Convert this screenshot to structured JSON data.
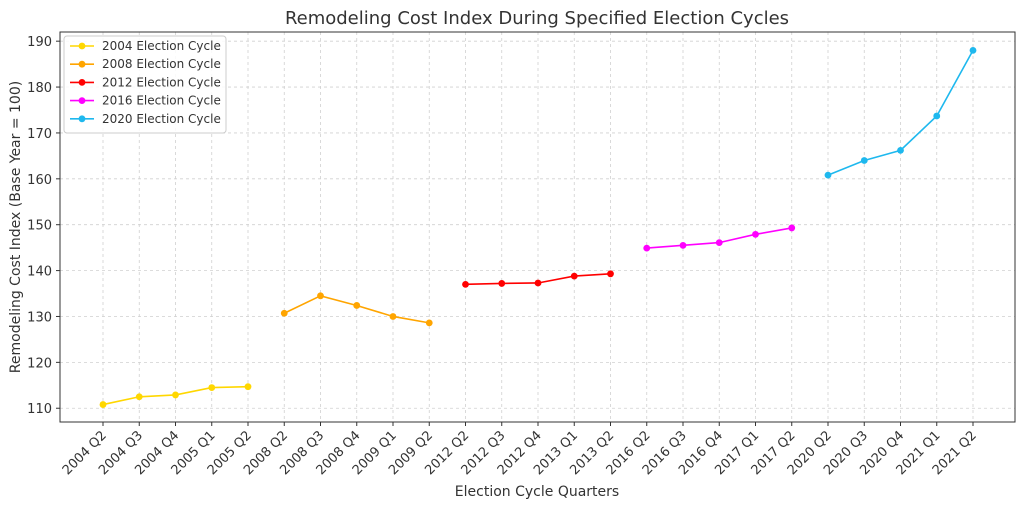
{
  "chart_data": {
    "type": "line",
    "title": "Remodeling Cost Index During Specified Election Cycles",
    "xlabel": "Election Cycle Quarters",
    "ylabel": "Remodeling Cost Index (Base Year = 100)",
    "ylim": [
      107,
      192
    ],
    "yticks": [
      110,
      120,
      130,
      140,
      150,
      160,
      170,
      180,
      190
    ],
    "grid": true,
    "legend_position": "top-left",
    "categories": [
      "2004 Q2",
      "2004 Q3",
      "2004 Q4",
      "2005 Q1",
      "2005 Q2",
      "2008 Q2",
      "2008 Q3",
      "2008 Q4",
      "2009 Q1",
      "2009 Q2",
      "2012 Q2",
      "2012 Q3",
      "2012 Q4",
      "2013 Q1",
      "2013 Q2",
      "2016 Q2",
      "2016 Q3",
      "2016 Q4",
      "2017 Q1",
      "2017 Q2",
      "2020 Q2",
      "2020 Q3",
      "2020 Q4",
      "2021 Q1",
      "2021 Q2"
    ],
    "series": [
      {
        "name": "2004 Election Cycle",
        "color": "#FFD700",
        "x": [
          "2004 Q2",
          "2004 Q3",
          "2004 Q4",
          "2005 Q1",
          "2005 Q2"
        ],
        "values": [
          110.8,
          112.5,
          112.9,
          114.5,
          114.7
        ]
      },
      {
        "name": "2008 Election Cycle",
        "color": "#FFA500",
        "x": [
          "2008 Q2",
          "2008 Q3",
          "2008 Q4",
          "2009 Q1",
          "2009 Q2"
        ],
        "values": [
          130.7,
          134.5,
          132.4,
          130.0,
          128.6
        ]
      },
      {
        "name": "2012 Election Cycle",
        "color": "#FF0000",
        "x": [
          "2012 Q2",
          "2012 Q3",
          "2012 Q4",
          "2013 Q1",
          "2013 Q2"
        ],
        "values": [
          137.0,
          137.2,
          137.3,
          138.8,
          139.3
        ]
      },
      {
        "name": "2016 Election Cycle",
        "color": "#FF00FF",
        "x": [
          "2016 Q2",
          "2016 Q3",
          "2016 Q4",
          "2017 Q1",
          "2017 Q2"
        ],
        "values": [
          144.9,
          145.5,
          146.1,
          147.9,
          149.3
        ]
      },
      {
        "name": "2020 Election Cycle",
        "color": "#1EB8EE",
        "x": [
          "2020 Q2",
          "2020 Q3",
          "2020 Q4",
          "2021 Q1",
          "2021 Q2"
        ],
        "values": [
          160.8,
          164.0,
          166.2,
          173.7,
          188.0
        ]
      }
    ]
  }
}
